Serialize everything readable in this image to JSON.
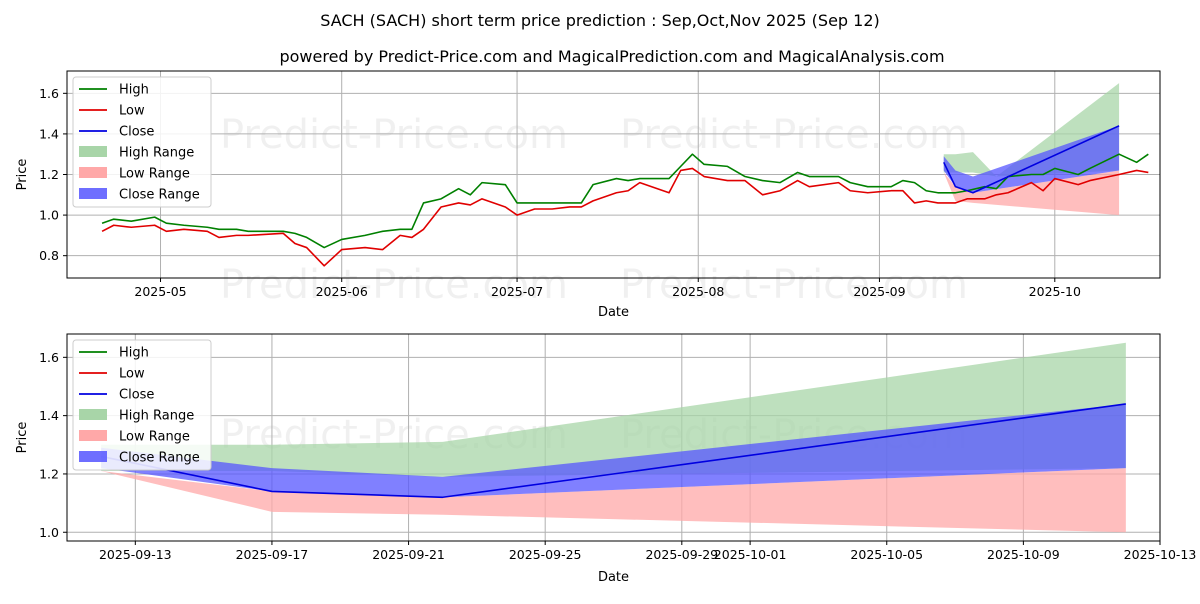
{
  "titles": {
    "main": "SACH (SACH) short term price prediction : Sep,Oct,Nov 2025 (Sep 12)",
    "sub": "powered by Predict-Price.com and MagicalPrediction.com and MagicalAnalysis.com"
  },
  "watermark": "Predict-Price.com",
  "colors": {
    "high": "#008000",
    "low": "#e00000",
    "close": "#0000e0",
    "high_range": "#a8d5a8",
    "low_range": "#ffa8a8",
    "close_range": "#5555ff"
  },
  "legend": [
    "High",
    "Low",
    "Close",
    "High Range",
    "Low Range",
    "Close Range"
  ],
  "chart_data": [
    {
      "type": "line",
      "panel": "history",
      "xlabel": "Date",
      "ylabel": "Price",
      "x_ticks": [
        "2025-05",
        "2025-06",
        "2025-07",
        "2025-08",
        "2025-09",
        "2025-10"
      ],
      "y_ticks": [
        "0.8",
        "1.0",
        "1.2",
        "1.4",
        "1.6"
      ],
      "ylim": [
        0.69,
        1.71
      ],
      "xlim": [
        "2025-04-15",
        "2025-10-19"
      ],
      "legend_position": "upper-left",
      "grid": true,
      "series": [
        {
          "name": "High",
          "points": [
            [
              "2025-04-21",
              0.96
            ],
            [
              "2025-04-23",
              0.98
            ],
            [
              "2025-04-26",
              0.97
            ],
            [
              "2025-04-30",
              0.99
            ],
            [
              "2025-05-02",
              0.96
            ],
            [
              "2025-05-05",
              0.95
            ],
            [
              "2025-05-09",
              0.94
            ],
            [
              "2025-05-11",
              0.93
            ],
            [
              "2025-05-14",
              0.93
            ],
            [
              "2025-05-16",
              0.92
            ],
            [
              "2025-05-22",
              0.92
            ],
            [
              "2025-05-24",
              0.91
            ],
            [
              "2025-05-26",
              0.89
            ],
            [
              "2025-05-29",
              0.84
            ],
            [
              "2025-06-01",
              0.88
            ],
            [
              "2025-06-05",
              0.9
            ],
            [
              "2025-06-08",
              0.92
            ],
            [
              "2025-06-11",
              0.93
            ],
            [
              "2025-06-13",
              0.93
            ],
            [
              "2025-06-15",
              1.06
            ],
            [
              "2025-06-18",
              1.08
            ],
            [
              "2025-06-21",
              1.13
            ],
            [
              "2025-06-23",
              1.1
            ],
            [
              "2025-06-25",
              1.16
            ],
            [
              "2025-06-29",
              1.15
            ],
            [
              "2025-07-01",
              1.06
            ],
            [
              "2025-07-04",
              1.06
            ],
            [
              "2025-07-07",
              1.06
            ],
            [
              "2025-07-10",
              1.06
            ],
            [
              "2025-07-12",
              1.06
            ],
            [
              "2025-07-14",
              1.15
            ],
            [
              "2025-07-18",
              1.18
            ],
            [
              "2025-07-20",
              1.17
            ],
            [
              "2025-07-22",
              1.18
            ],
            [
              "2025-07-27",
              1.18
            ],
            [
              "2025-07-29",
              1.24
            ],
            [
              "2025-07-31",
              1.3
            ],
            [
              "2025-08-02",
              1.25
            ],
            [
              "2025-08-06",
              1.24
            ],
            [
              "2025-08-09",
              1.19
            ],
            [
              "2025-08-12",
              1.17
            ],
            [
              "2025-08-15",
              1.16
            ],
            [
              "2025-08-18",
              1.21
            ],
            [
              "2025-08-20",
              1.19
            ],
            [
              "2025-08-25",
              1.19
            ],
            [
              "2025-08-27",
              1.16
            ],
            [
              "2025-08-30",
              1.14
            ],
            [
              "2025-09-03",
              1.14
            ],
            [
              "2025-09-05",
              1.17
            ],
            [
              "2025-09-07",
              1.16
            ],
            [
              "2025-09-09",
              1.12
            ],
            [
              "2025-09-11",
              1.11
            ],
            [
              "2025-09-14",
              1.11
            ],
            [
              "2025-09-16",
              1.12
            ],
            [
              "2025-09-19",
              1.14
            ],
            [
              "2025-09-21",
              1.13
            ],
            [
              "2025-09-23",
              1.19
            ],
            [
              "2025-09-27",
              1.2
            ],
            [
              "2025-09-29",
              1.2
            ],
            [
              "2025-10-01",
              1.23
            ],
            [
              "2025-10-05",
              1.2
            ],
            [
              "2025-10-07",
              1.23
            ],
            [
              "2025-10-12",
              1.3
            ],
            [
              "2025-10-15",
              1.26
            ],
            [
              "2025-10-17",
              1.3
            ]
          ]
        },
        {
          "name": "Low",
          "points": [
            [
              "2025-04-21",
              0.92
            ],
            [
              "2025-04-23",
              0.95
            ],
            [
              "2025-04-26",
              0.94
            ],
            [
              "2025-04-30",
              0.95
            ],
            [
              "2025-05-02",
              0.92
            ],
            [
              "2025-05-05",
              0.93
            ],
            [
              "2025-05-09",
              0.92
            ],
            [
              "2025-05-11",
              0.89
            ],
            [
              "2025-05-14",
              0.9
            ],
            [
              "2025-05-16",
              0.9
            ],
            [
              "2025-05-22",
              0.91
            ],
            [
              "2025-05-24",
              0.86
            ],
            [
              "2025-05-26",
              0.84
            ],
            [
              "2025-05-29",
              0.75
            ],
            [
              "2025-06-01",
              0.83
            ],
            [
              "2025-06-05",
              0.84
            ],
            [
              "2025-06-08",
              0.83
            ],
            [
              "2025-06-11",
              0.9
            ],
            [
              "2025-06-13",
              0.89
            ],
            [
              "2025-06-15",
              0.93
            ],
            [
              "2025-06-18",
              1.04
            ],
            [
              "2025-06-21",
              1.06
            ],
            [
              "2025-06-23",
              1.05
            ],
            [
              "2025-06-25",
              1.08
            ],
            [
              "2025-06-29",
              1.04
            ],
            [
              "2025-07-01",
              1.0
            ],
            [
              "2025-07-04",
              1.03
            ],
            [
              "2025-07-07",
              1.03
            ],
            [
              "2025-07-10",
              1.04
            ],
            [
              "2025-07-12",
              1.04
            ],
            [
              "2025-07-14",
              1.07
            ],
            [
              "2025-07-18",
              1.11
            ],
            [
              "2025-07-20",
              1.12
            ],
            [
              "2025-07-22",
              1.16
            ],
            [
              "2025-07-27",
              1.11
            ],
            [
              "2025-07-29",
              1.22
            ],
            [
              "2025-07-31",
              1.23
            ],
            [
              "2025-08-02",
              1.19
            ],
            [
              "2025-08-06",
              1.17
            ],
            [
              "2025-08-09",
              1.17
            ],
            [
              "2025-08-12",
              1.1
            ],
            [
              "2025-08-15",
              1.12
            ],
            [
              "2025-08-18",
              1.17
            ],
            [
              "2025-08-20",
              1.14
            ],
            [
              "2025-08-25",
              1.16
            ],
            [
              "2025-08-27",
              1.12
            ],
            [
              "2025-08-30",
              1.11
            ],
            [
              "2025-09-03",
              1.12
            ],
            [
              "2025-09-05",
              1.12
            ],
            [
              "2025-09-07",
              1.06
            ],
            [
              "2025-09-09",
              1.07
            ],
            [
              "2025-09-11",
              1.06
            ],
            [
              "2025-09-14",
              1.06
            ],
            [
              "2025-09-16",
              1.08
            ],
            [
              "2025-09-19",
              1.08
            ],
            [
              "2025-09-21",
              1.1
            ],
            [
              "2025-09-23",
              1.11
            ],
            [
              "2025-09-27",
              1.16
            ],
            [
              "2025-09-29",
              1.12
            ],
            [
              "2025-10-01",
              1.18
            ],
            [
              "2025-10-05",
              1.15
            ],
            [
              "2025-10-07",
              1.17
            ],
            [
              "2025-10-12",
              1.2
            ],
            [
              "2025-10-15",
              1.22
            ],
            [
              "2025-10-17",
              1.21
            ]
          ]
        },
        {
          "name": "Close",
          "points": [
            [
              "2025-09-12",
              1.26
            ],
            [
              "2025-09-14",
              1.14
            ],
            [
              "2025-09-17",
              1.11
            ],
            [
              "2025-10-12",
              1.44
            ]
          ]
        }
      ],
      "ranges": [
        {
          "name": "High Range",
          "upper": [
            [
              "2025-09-12",
              1.3
            ],
            [
              "2025-09-14",
              1.3
            ],
            [
              "2025-09-17",
              1.31
            ],
            [
              "2025-09-21",
              1.19
            ],
            [
              "2025-10-12",
              1.65
            ]
          ],
          "lower": [
            [
              "2025-09-12",
              1.21
            ],
            [
              "2025-09-14",
              1.21
            ],
            [
              "2025-09-17",
              1.21
            ],
            [
              "2025-09-21",
              1.19
            ],
            [
              "2025-10-12",
              1.22
            ]
          ]
        },
        {
          "name": "Low Range",
          "upper": [
            [
              "2025-09-12",
              1.21
            ],
            [
              "2025-09-14",
              1.14
            ],
            [
              "2025-09-17",
              1.11
            ],
            [
              "2025-10-12",
              1.22
            ]
          ],
          "lower": [
            [
              "2025-09-12",
              1.21
            ],
            [
              "2025-09-14",
              1.07
            ],
            [
              "2025-09-17",
              1.06
            ],
            [
              "2025-10-12",
              1.0
            ]
          ]
        },
        {
          "name": "Close Range",
          "upper": [
            [
              "2025-09-12",
              1.29
            ],
            [
              "2025-09-14",
              1.22
            ],
            [
              "2025-09-17",
              1.19
            ],
            [
              "2025-10-12",
              1.44
            ]
          ],
          "lower": [
            [
              "2025-09-12",
              1.22
            ],
            [
              "2025-09-14",
              1.14
            ],
            [
              "2025-09-17",
              1.11
            ],
            [
              "2025-10-12",
              1.22
            ]
          ]
        }
      ]
    },
    {
      "type": "line",
      "panel": "forecast",
      "xlabel": "Date",
      "ylabel": "Price",
      "x_ticks": [
        "2025-09-13",
        "2025-09-17",
        "2025-09-21",
        "2025-09-25",
        "2025-09-29",
        "2025-10-01",
        "2025-10-05",
        "2025-10-09",
        "2025-10-13"
      ],
      "y_ticks": [
        "1.0",
        "1.2",
        "1.4",
        "1.6"
      ],
      "ylim": [
        0.97,
        1.68
      ],
      "xlim": [
        "2025-09-11",
        "2025-10-13"
      ],
      "legend_position": "upper-left",
      "grid": true,
      "series": [
        {
          "name": "Close",
          "points": [
            [
              "2025-09-12",
              1.26
            ],
            [
              "2025-09-17",
              1.14
            ],
            [
              "2025-09-22",
              1.12
            ],
            [
              "2025-10-12",
              1.44
            ]
          ]
        }
      ],
      "ranges": [
        {
          "name": "High Range",
          "upper": [
            [
              "2025-09-12",
              1.3
            ],
            [
              "2025-09-17",
              1.3
            ],
            [
              "2025-09-22",
              1.31
            ],
            [
              "2025-10-12",
              1.65
            ]
          ],
          "lower": [
            [
              "2025-09-12",
              1.21
            ],
            [
              "2025-09-17",
              1.21
            ],
            [
              "2025-09-22",
              1.19
            ],
            [
              "2025-10-12",
              1.22
            ]
          ]
        },
        {
          "name": "Low Range",
          "upper": [
            [
              "2025-09-12",
              1.21
            ],
            [
              "2025-09-17",
              1.14
            ],
            [
              "2025-09-22",
              1.12
            ],
            [
              "2025-10-12",
              1.22
            ]
          ],
          "lower": [
            [
              "2025-09-12",
              1.21
            ],
            [
              "2025-09-17",
              1.07
            ],
            [
              "2025-09-22",
              1.06
            ],
            [
              "2025-10-12",
              1.0
            ]
          ]
        },
        {
          "name": "Close Range",
          "upper": [
            [
              "2025-09-12",
              1.29
            ],
            [
              "2025-09-17",
              1.22
            ],
            [
              "2025-09-22",
              1.19
            ],
            [
              "2025-10-12",
              1.44
            ]
          ],
          "lower": [
            [
              "2025-09-12",
              1.22
            ],
            [
              "2025-09-17",
              1.14
            ],
            [
              "2025-09-22",
              1.12
            ],
            [
              "2025-10-12",
              1.22
            ]
          ]
        }
      ]
    }
  ]
}
